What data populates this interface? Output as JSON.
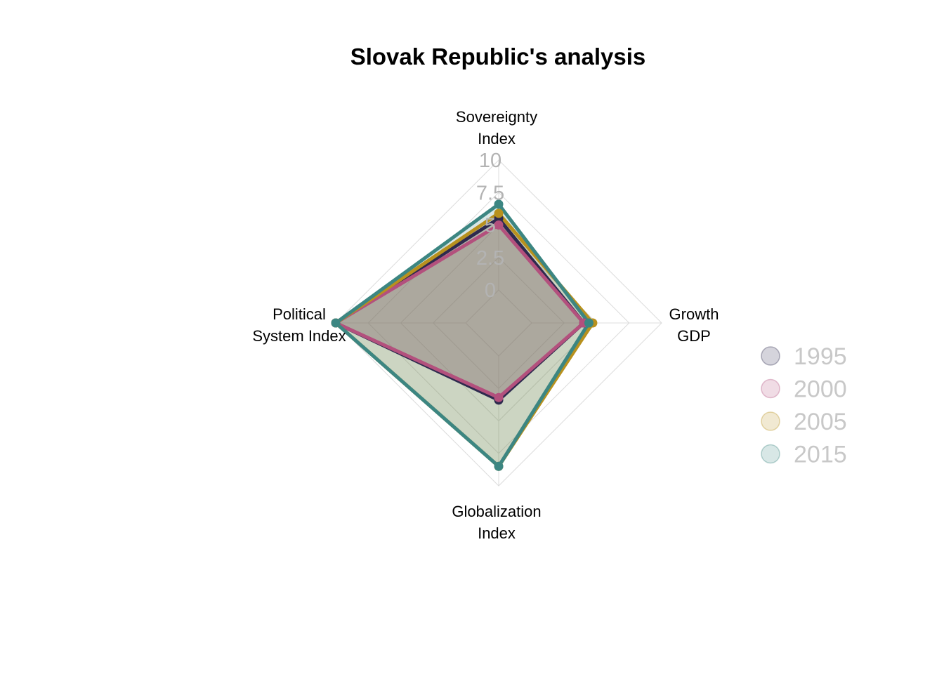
{
  "chart_data": {
    "type": "radar",
    "title": "Slovak Republic's analysis",
    "axes": [
      [
        "Sovereignty",
        "Index"
      ],
      [
        "Growth",
        "GDP"
      ],
      [
        "Globalization",
        "Index"
      ],
      [
        "Political",
        "System Index"
      ]
    ],
    "tick_labels": [
      "0",
      "2.5",
      "5",
      "7.5",
      "10"
    ],
    "range": [
      0,
      10
    ],
    "grid": true,
    "legend_position": "right",
    "series": [
      {
        "name": "1995",
        "color": "#2e2a4e",
        "values": [
          5.5,
          4.0,
          3.4,
          10.0
        ]
      },
      {
        "name": "2000",
        "color": "#b3507d",
        "values": [
          5.0,
          4.0,
          3.2,
          10.0
        ]
      },
      {
        "name": "2005",
        "color": "#b8911e",
        "values": [
          5.9,
          4.7,
          8.5,
          10.0
        ]
      },
      {
        "name": "2015",
        "color": "#3c8682",
        "values": [
          6.6,
          4.4,
          8.5,
          10.0
        ]
      }
    ]
  }
}
